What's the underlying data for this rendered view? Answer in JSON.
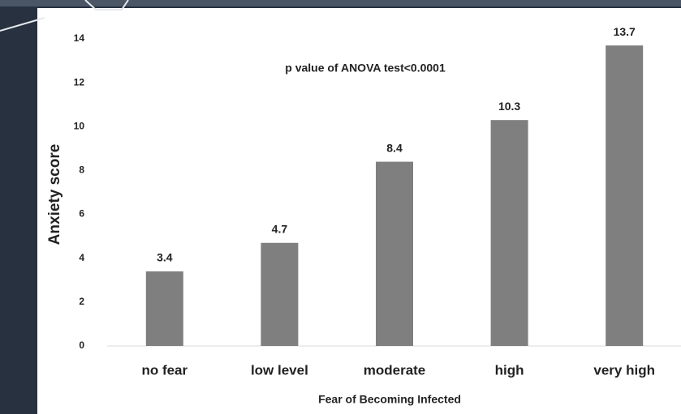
{
  "chart_data": {
    "type": "bar",
    "annotation": "p value of ANOVA test<0.0001",
    "y_label": "Anxiety score",
    "x_label": "Fear of Becoming Infected",
    "categories": [
      "no fear",
      "low level",
      "moderate",
      "high",
      "very high"
    ],
    "values": [
      3.4,
      4.7,
      8.4,
      10.3,
      13.7
    ],
    "color": "#7f7f7f",
    "ylim": [
      0,
      14
    ],
    "yticks": [
      0,
      2,
      4,
      6,
      8,
      10,
      12,
      14
    ],
    "grid": false
  }
}
